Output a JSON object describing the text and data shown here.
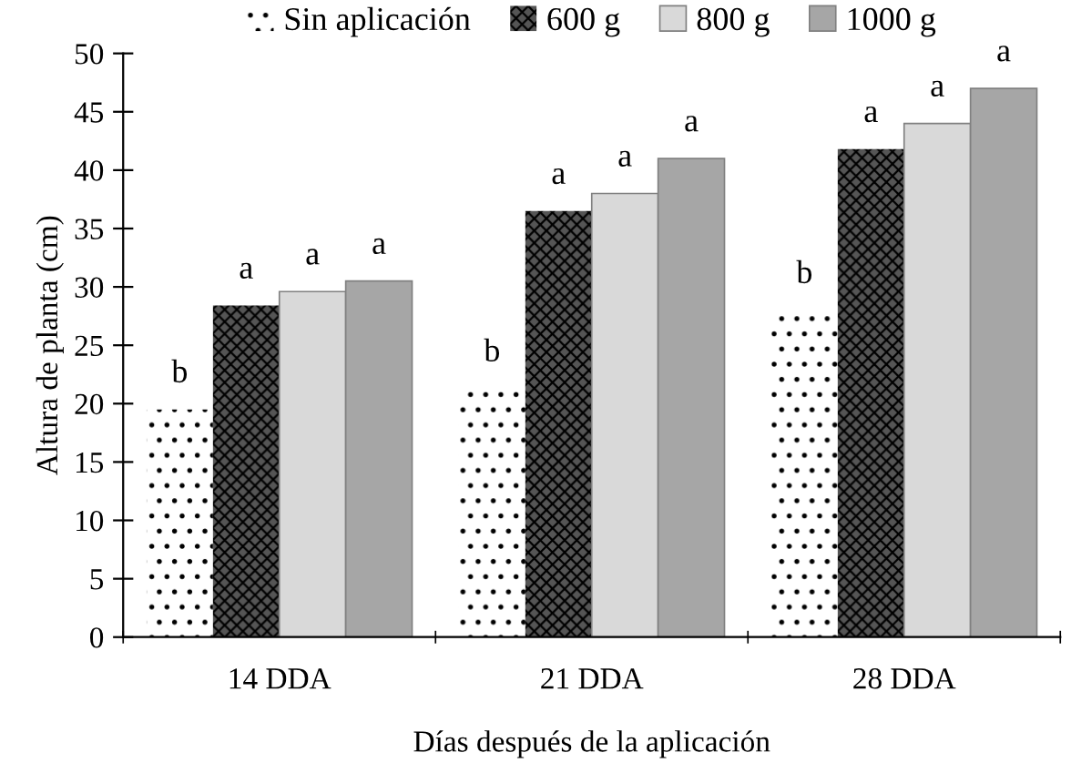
{
  "chart_data": {
    "type": "bar",
    "xlabel": "Días después de la aplicación",
    "ylabel": "Altura de planta (cm)",
    "categories": [
      "14 DDA",
      "21 DDA",
      "28 DDA"
    ],
    "series": [
      {
        "name": "Sin aplicación",
        "color": "#ffffff",
        "values": [
          19.5,
          21.3,
          28.0
        ],
        "value_labels": [
          "b",
          "b",
          "b"
        ]
      },
      {
        "name": "600 g",
        "color": "#555555",
        "values": [
          28.4,
          36.5,
          41.8
        ],
        "value_labels": [
          "a",
          "a",
          "a"
        ]
      },
      {
        "name": "800 g",
        "color": "#d9d9d9",
        "values": [
          29.6,
          38.0,
          44.0
        ],
        "value_labels": [
          "a",
          "a",
          "a"
        ]
      },
      {
        "name": "1000 g",
        "color": "#a6a6a6",
        "values": [
          30.5,
          41.0,
          47.0
        ],
        "value_labels": [
          "a",
          "a",
          "a"
        ]
      }
    ],
    "ylim": [
      0,
      50
    ],
    "yticks": [
      0,
      5,
      10,
      15,
      20,
      25,
      30,
      35,
      40,
      45,
      50
    ],
    "grid": false,
    "legend": "top"
  }
}
